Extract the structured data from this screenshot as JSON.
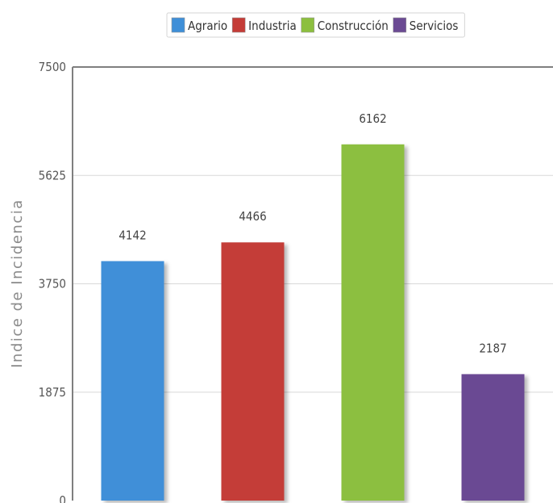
{
  "chart_data": {
    "type": "bar",
    "categories": [
      "Agrario",
      "Industria",
      "Construcción",
      "Servicios"
    ],
    "values": [
      4142,
      4466,
      6162,
      2187
    ],
    "colors": [
      "#3f8fd8",
      "#c43c37",
      "#8cbf3f",
      "#6b4a93"
    ],
    "ylabel": "Indice de Incidencia",
    "ylim": [
      0,
      7500
    ],
    "yticks": [
      0,
      1875,
      3750,
      5625,
      7500
    ],
    "legend": {
      "position": "top",
      "entries": [
        "Agrario",
        "Industria",
        "Construcción",
        "Servicios"
      ]
    },
    "grid": true
  }
}
